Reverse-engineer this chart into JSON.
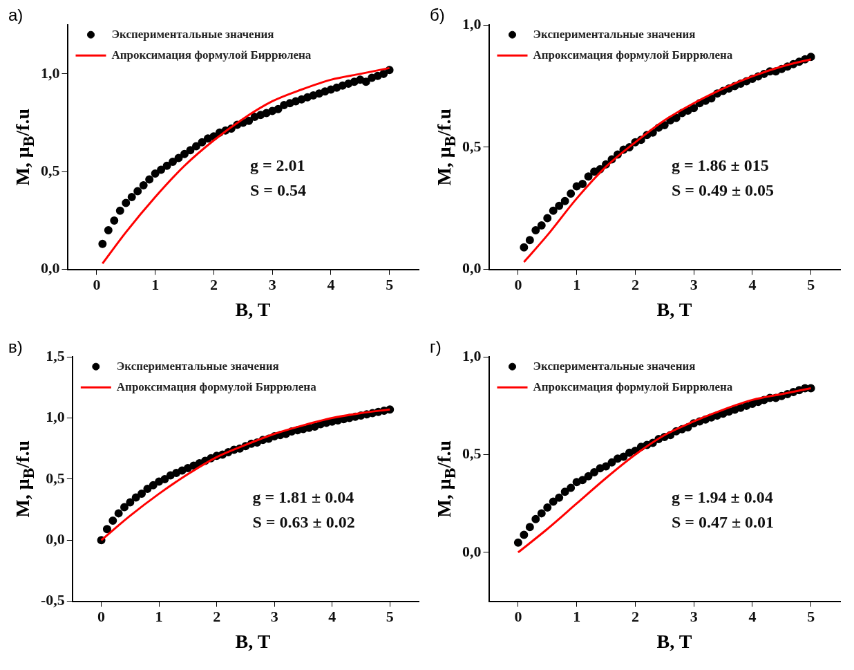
{
  "chart_data": [
    {
      "type": "scatter",
      "title": "а)",
      "xlabel": "B, T",
      "ylabel": "M, μ$_{B}$/f.u",
      "xlim": [
        -0.5,
        5.5
      ],
      "xticks": [
        0,
        1,
        2,
        3,
        4,
        5
      ],
      "ylim": [
        0,
        1.25
      ],
      "yticks": [
        {
          "value": 0,
          "label": "0,0"
        },
        {
          "value": 0.5,
          "label": "0,5"
        },
        {
          "value": 1,
          "label": "1,0"
        }
      ],
      "grid": false,
      "legend": "top left",
      "annotations": [
        "g = 2.01",
        "S = 0.54"
      ],
      "series": [
        {
          "name": "Экспериментальные значения",
          "type": "scatter",
          "marker": "circle",
          "color": "#000000",
          "x": [
            0.1,
            0.2,
            0.3,
            0.4,
            0.5,
            0.6,
            0.7,
            0.8,
            0.9,
            1.0,
            1.1,
            1.2,
            1.3,
            1.4,
            1.5,
            1.6,
            1.7,
            1.8,
            1.9,
            2.0,
            2.1,
            2.2,
            2.3,
            2.4,
            2.5,
            2.6,
            2.7,
            2.8,
            2.9,
            3.0,
            3.1,
            3.2,
            3.3,
            3.4,
            3.5,
            3.6,
            3.7,
            3.8,
            3.9,
            4.0,
            4.1,
            4.2,
            4.3,
            4.4,
            4.5,
            4.6,
            4.7,
            4.8,
            4.9,
            5.0
          ],
          "values": [
            0.13,
            0.2,
            0.25,
            0.3,
            0.34,
            0.37,
            0.4,
            0.43,
            0.46,
            0.49,
            0.51,
            0.53,
            0.55,
            0.57,
            0.59,
            0.61,
            0.63,
            0.65,
            0.67,
            0.68,
            0.7,
            0.71,
            0.72,
            0.74,
            0.75,
            0.76,
            0.78,
            0.79,
            0.8,
            0.81,
            0.82,
            0.84,
            0.85,
            0.86,
            0.87,
            0.88,
            0.89,
            0.9,
            0.91,
            0.92,
            0.93,
            0.94,
            0.95,
            0.96,
            0.97,
            0.96,
            0.98,
            0.99,
            1.0,
            1.02
          ]
        },
        {
          "name": "Апроксимация формулой Биррюлена",
          "type": "line",
          "color": "#ff0000",
          "x": [
            0.1,
            0.5,
            1,
            1.5,
            2,
            2.5,
            3,
            3.5,
            4,
            4.5,
            5
          ],
          "values": [
            0.03,
            0.19,
            0.37,
            0.53,
            0.66,
            0.77,
            0.86,
            0.92,
            0.97,
            1.0,
            1.03
          ]
        }
      ]
    },
    {
      "type": "scatter",
      "title": "б)",
      "xlabel": "B, T",
      "ylabel": "M, μ$_{B}$/f.u",
      "xlim": [
        -0.5,
        5.5
      ],
      "xticks": [
        0,
        1,
        2,
        3,
        4,
        5
      ],
      "ylim": [
        0,
        1
      ],
      "yticks": [
        {
          "value": 0,
          "label": "0,0"
        },
        {
          "value": 0.5,
          "label": "0,5"
        },
        {
          "value": 1,
          "label": "1,0"
        }
      ],
      "grid": false,
      "legend": "top left",
      "annotations": [
        "g = 1.86 ± 015",
        "S = 0.49 ± 0.05"
      ],
      "series": [
        {
          "name": "Экспериментальные значения",
          "type": "scatter",
          "marker": "circle",
          "color": "#000000",
          "x": [
            0.1,
            0.2,
            0.3,
            0.4,
            0.5,
            0.6,
            0.7,
            0.8,
            0.9,
            1.0,
            1.1,
            1.2,
            1.3,
            1.4,
            1.5,
            1.6,
            1.7,
            1.8,
            1.9,
            2.0,
            2.1,
            2.2,
            2.3,
            2.4,
            2.5,
            2.6,
            2.7,
            2.8,
            2.9,
            3.0,
            3.1,
            3.2,
            3.3,
            3.4,
            3.5,
            3.6,
            3.7,
            3.8,
            3.9,
            4.0,
            4.1,
            4.2,
            4.3,
            4.4,
            4.5,
            4.6,
            4.7,
            4.8,
            4.9,
            5.0
          ],
          "values": [
            0.09,
            0.12,
            0.16,
            0.18,
            0.21,
            0.24,
            0.26,
            0.28,
            0.31,
            0.34,
            0.35,
            0.38,
            0.4,
            0.41,
            0.43,
            0.45,
            0.47,
            0.49,
            0.5,
            0.52,
            0.53,
            0.55,
            0.56,
            0.58,
            0.59,
            0.61,
            0.62,
            0.64,
            0.65,
            0.66,
            0.68,
            0.69,
            0.7,
            0.72,
            0.73,
            0.74,
            0.75,
            0.76,
            0.77,
            0.78,
            0.79,
            0.8,
            0.81,
            0.81,
            0.82,
            0.83,
            0.84,
            0.85,
            0.86,
            0.87
          ]
        },
        {
          "name": "Апроксимация формулой Биррюлена",
          "type": "line",
          "color": "#ff0000",
          "x": [
            0.1,
            0.5,
            1,
            1.5,
            2,
            2.5,
            3,
            3.5,
            4,
            4.5,
            5
          ],
          "values": [
            0.03,
            0.14,
            0.29,
            0.42,
            0.52,
            0.61,
            0.68,
            0.74,
            0.79,
            0.83,
            0.86
          ]
        }
      ]
    },
    {
      "type": "scatter",
      "title": "в)",
      "xlabel": "B, T",
      "ylabel": "M, μ$_{B}$/f.u",
      "xlim": [
        -0.5,
        5.5
      ],
      "xticks": [
        0,
        1,
        2,
        3,
        4,
        5
      ],
      "ylim": [
        -0.5,
        1.5
      ],
      "yticks": [
        {
          "value": -0.5,
          "label": "-0,5"
        },
        {
          "value": 0,
          "label": "0,0"
        },
        {
          "value": 0.5,
          "label": "0,5"
        },
        {
          "value": 1,
          "label": "1,0"
        },
        {
          "value": 1.5,
          "label": "1,5"
        }
      ],
      "grid": false,
      "legend": "top left",
      "annotations": [
        "g = 1.81 ± 0.04",
        "S = 0.63 ± 0.02"
      ],
      "series": [
        {
          "name": "Экспериментальные значения",
          "type": "scatter",
          "marker": "circle",
          "color": "#000000",
          "x": [
            0,
            0.1,
            0.2,
            0.3,
            0.4,
            0.5,
            0.6,
            0.7,
            0.8,
            0.9,
            1.0,
            1.1,
            1.2,
            1.3,
            1.4,
            1.5,
            1.6,
            1.7,
            1.8,
            1.9,
            2.0,
            2.1,
            2.2,
            2.3,
            2.4,
            2.5,
            2.6,
            2.7,
            2.8,
            2.9,
            3.0,
            3.1,
            3.2,
            3.3,
            3.4,
            3.5,
            3.6,
            3.7,
            3.8,
            3.9,
            4.0,
            4.1,
            4.2,
            4.3,
            4.4,
            4.5,
            4.6,
            4.7,
            4.8,
            4.9,
            5.0
          ],
          "values": [
            0,
            0.09,
            0.16,
            0.22,
            0.27,
            0.31,
            0.35,
            0.38,
            0.42,
            0.45,
            0.48,
            0.5,
            0.53,
            0.55,
            0.57,
            0.59,
            0.61,
            0.63,
            0.65,
            0.67,
            0.69,
            0.7,
            0.72,
            0.74,
            0.75,
            0.77,
            0.79,
            0.8,
            0.82,
            0.83,
            0.85,
            0.86,
            0.87,
            0.89,
            0.9,
            0.91,
            0.92,
            0.93,
            0.95,
            0.96,
            0.97,
            0.98,
            0.99,
            1.0,
            1.01,
            1.02,
            1.03,
            1.04,
            1.05,
            1.06,
            1.07
          ]
        },
        {
          "name": "Апроксимация формулой Биррюлена",
          "type": "line",
          "color": "#ff0000",
          "x": [
            0,
            0.5,
            1,
            1.5,
            2,
            2.5,
            3,
            3.5,
            4,
            4.5,
            5
          ],
          "values": [
            0,
            0.2,
            0.38,
            0.54,
            0.68,
            0.78,
            0.87,
            0.94,
            1.0,
            1.04,
            1.07
          ]
        }
      ]
    },
    {
      "type": "scatter",
      "title": "г)",
      "xlabel": "B, T",
      "ylabel": "M, μ$_{B}$/f.u",
      "xlim": [
        -0.5,
        5.5
      ],
      "xticks": [
        0,
        1,
        2,
        3,
        4,
        5
      ],
      "ylim": [
        -0.25,
        1
      ],
      "yticks": [
        {
          "value": 0,
          "label": "0,0"
        },
        {
          "value": 0.5,
          "label": "0,5"
        },
        {
          "value": 1,
          "label": "1,0"
        }
      ],
      "grid": false,
      "legend": "top left",
      "annotations": [
        "g = 1.94 ± 0.04",
        "S = 0.47 ± 0.01"
      ],
      "series": [
        {
          "name": "Экспериментальные значения",
          "type": "scatter",
          "marker": "circle",
          "color": "#000000",
          "x": [
            0,
            0.1,
            0.2,
            0.3,
            0.4,
            0.5,
            0.6,
            0.7,
            0.8,
            0.9,
            1.0,
            1.1,
            1.2,
            1.3,
            1.4,
            1.5,
            1.6,
            1.7,
            1.8,
            1.9,
            2.0,
            2.1,
            2.2,
            2.3,
            2.4,
            2.5,
            2.6,
            2.7,
            2.8,
            2.9,
            3.0,
            3.1,
            3.2,
            3.3,
            3.4,
            3.5,
            3.6,
            3.7,
            3.8,
            3.9,
            4.0,
            4.1,
            4.2,
            4.3,
            4.4,
            4.5,
            4.6,
            4.7,
            4.8,
            4.9,
            5.0
          ],
          "values": [
            0.05,
            0.09,
            0.13,
            0.17,
            0.2,
            0.23,
            0.26,
            0.28,
            0.31,
            0.33,
            0.36,
            0.37,
            0.39,
            0.41,
            0.43,
            0.44,
            0.46,
            0.48,
            0.49,
            0.51,
            0.52,
            0.54,
            0.55,
            0.56,
            0.58,
            0.59,
            0.6,
            0.62,
            0.63,
            0.64,
            0.66,
            0.67,
            0.68,
            0.69,
            0.7,
            0.71,
            0.72,
            0.73,
            0.74,
            0.75,
            0.76,
            0.77,
            0.78,
            0.79,
            0.79,
            0.8,
            0.81,
            0.82,
            0.83,
            0.84,
            0.84
          ]
        },
        {
          "name": "Апроксимация формулой Биррюлена",
          "type": "line",
          "color": "#ff0000",
          "x": [
            0,
            0.5,
            1,
            1.5,
            2,
            2.5,
            3,
            3.5,
            4,
            4.5,
            5
          ],
          "values": [
            0,
            0.12,
            0.25,
            0.38,
            0.5,
            0.6,
            0.67,
            0.73,
            0.78,
            0.81,
            0.84
          ]
        }
      ]
    }
  ]
}
